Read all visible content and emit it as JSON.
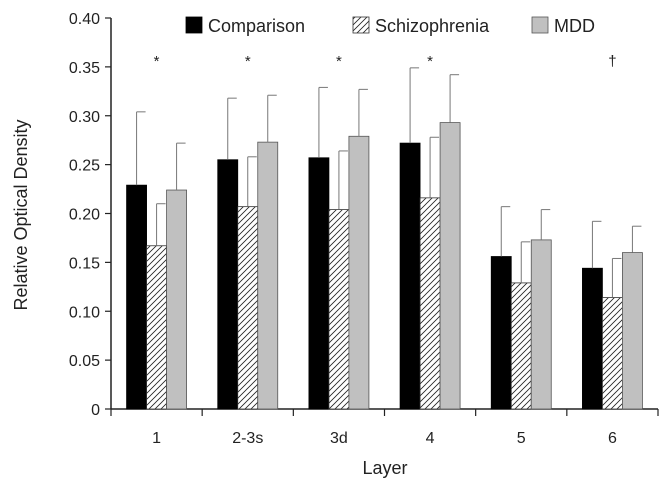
{
  "chart_data": {
    "type": "bar",
    "categories": [
      "1",
      "2-3s",
      "3d",
      "4",
      "5",
      "6"
    ],
    "series": [
      {
        "name": "Comparison",
        "values": [
          0.229,
          0.255,
          0.257,
          0.272,
          0.156,
          0.144
        ],
        "errors": [
          0.075,
          0.063,
          0.072,
          0.077,
          0.051,
          0.048
        ],
        "color": "#000000",
        "pattern": "solid"
      },
      {
        "name": "Schizophrenia",
        "values": [
          0.167,
          0.207,
          0.204,
          0.216,
          0.129,
          0.114
        ],
        "errors": [
          0.043,
          0.051,
          0.06,
          0.062,
          0.042,
          0.04
        ],
        "color": "#ffffff",
        "pattern": "diagonal-hatch"
      },
      {
        "name": "MDD",
        "values": [
          0.224,
          0.273,
          0.279,
          0.293,
          0.173,
          0.16
        ],
        "errors": [
          0.048,
          0.048,
          0.048,
          0.049,
          0.031,
          0.027
        ],
        "color": "#c0c0c0",
        "pattern": "solid"
      }
    ],
    "annotations": [
      "*",
      "*",
      "*",
      "*",
      "",
      "†"
    ],
    "xlabel": "Layer",
    "ylabel": "Relative Optical Density",
    "ylim": [
      0,
      0.4
    ],
    "yticks": [
      "0",
      "0.05",
      "0.10",
      "0.15",
      "0.20",
      "0.25",
      "0.30",
      "0.35",
      "0.40"
    ],
    "grid": false,
    "legend_position": "top-right"
  }
}
